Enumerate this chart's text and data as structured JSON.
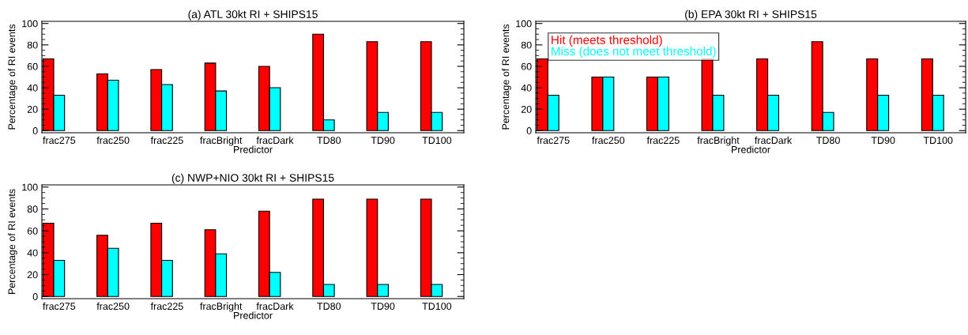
{
  "chart_data": [
    {
      "type": "bar",
      "title": "(a) ATL 30kt RI + SHIPS15",
      "xlabel": "Predictor",
      "ylabel": "Percentage of RI events",
      "categories": [
        "frac275",
        "frac250",
        "frac225",
        "fracBright",
        "fracDark",
        "TD80",
        "TD90",
        "TD100"
      ],
      "series": [
        {
          "color": "#ff0000",
          "values": [
            67,
            53,
            57,
            63,
            60,
            90,
            83,
            83
          ]
        },
        {
          "color": "#00ffff",
          "values": [
            33,
            47,
            43,
            37,
            40,
            10,
            17,
            17
          ]
        }
      ],
      "ylim": [
        -2,
        102
      ],
      "yticks": [
        0,
        20,
        40,
        60,
        80,
        100
      ],
      "grid": false,
      "legend": false
    },
    {
      "type": "bar",
      "title": "(b) EPA 30kt RI + SHIPS15",
      "xlabel": "Predictor",
      "ylabel": "Percentage of RI events",
      "categories": [
        "frac275",
        "frac250",
        "frac225",
        "fracBright",
        "fracDark",
        "TD80",
        "TD90",
        "TD100"
      ],
      "series": [
        {
          "name": "Hit (meets threshold)",
          "color": "#ff0000",
          "values": [
            67,
            50,
            50,
            67,
            67,
            83,
            67,
            67
          ]
        },
        {
          "name": "Miss (does not meet threshold)",
          "color": "#00ffff",
          "values": [
            33,
            50,
            50,
            33,
            33,
            17,
            33,
            33
          ]
        }
      ],
      "ylim": [
        -2,
        102
      ],
      "yticks": [
        0,
        20,
        40,
        60,
        80,
        100
      ],
      "grid": false,
      "legend": "top left"
    },
    {
      "type": "bar",
      "title": "(c) NWP+NIO 30kt RI + SHIPS15",
      "xlabel": "Predictor",
      "ylabel": "Percentage of RI events",
      "categories": [
        "frac275",
        "frac250",
        "frac225",
        "fracBright",
        "fracDark",
        "TD80",
        "TD90",
        "TD100"
      ],
      "series": [
        {
          "color": "#ff0000",
          "values": [
            67,
            56,
            67,
            61,
            78,
            89,
            89,
            89
          ]
        },
        {
          "color": "#00ffff",
          "values": [
            33,
            44,
            33,
            39,
            22,
            11,
            11,
            11
          ]
        }
      ],
      "ylim": [
        -2,
        102
      ],
      "yticks": [
        0,
        20,
        40,
        60,
        80,
        100
      ],
      "grid": false,
      "legend": false
    }
  ]
}
